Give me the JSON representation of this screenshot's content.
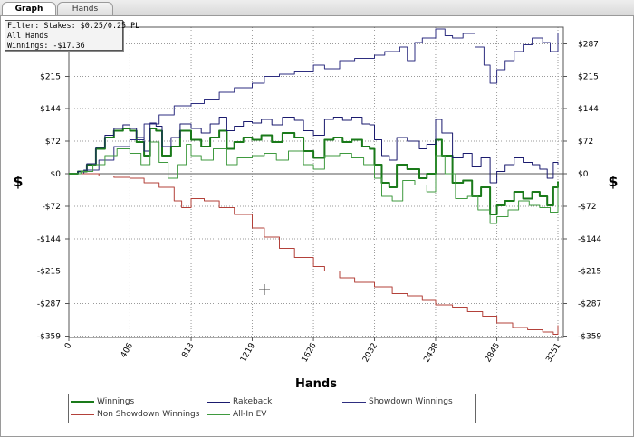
{
  "tabs": [
    {
      "label": "Graph",
      "active": true
    },
    {
      "label": "Hands",
      "active": false
    }
  ],
  "filter": {
    "line1": "Filter: Stakes: $0.25/0.25 PL",
    "line2": "All Hands",
    "line3": "Winnings: -$17.36"
  },
  "chart_data": {
    "type": "line",
    "xlabel": "Hands",
    "ylabel_left": "$",
    "ylabel_right": "$",
    "xlim": [
      0,
      3251
    ],
    "ylim": [
      -359,
      330
    ],
    "x_ticks": [
      0,
      406,
      813,
      1219,
      1626,
      2032,
      2438,
      2845,
      3251
    ],
    "y_ticks": [
      {
        "value": 287,
        "label": "$287"
      },
      {
        "value": 215,
        "label": "$215"
      },
      {
        "value": 144,
        "label": "$144"
      },
      {
        "value": 72,
        "label": "$72"
      },
      {
        "value": 0,
        "label": "$0"
      },
      {
        "value": -72,
        "label": "-$72"
      },
      {
        "value": -144,
        "label": "-$144"
      },
      {
        "value": -215,
        "label": "-$215"
      },
      {
        "value": -287,
        "label": "-$287"
      },
      {
        "value": -359,
        "label": "-$359"
      }
    ],
    "grid": true,
    "legend_position": "bottom",
    "series": [
      {
        "name": "Winnings",
        "color": "#1a7a1a",
        "width": 2,
        "points": [
          [
            0,
            0
          ],
          [
            60,
            5
          ],
          [
            120,
            20
          ],
          [
            180,
            55
          ],
          [
            240,
            80
          ],
          [
            300,
            95
          ],
          [
            360,
            100
          ],
          [
            406,
            95
          ],
          [
            450,
            70
          ],
          [
            500,
            40
          ],
          [
            540,
            100
          ],
          [
            580,
            95
          ],
          [
            620,
            40
          ],
          [
            680,
            60
          ],
          [
            740,
            95
          ],
          [
            813,
            75
          ],
          [
            880,
            60
          ],
          [
            940,
            80
          ],
          [
            1000,
            95
          ],
          [
            1050,
            55
          ],
          [
            1100,
            70
          ],
          [
            1160,
            80
          ],
          [
            1219,
            75
          ],
          [
            1280,
            85
          ],
          [
            1350,
            70
          ],
          [
            1420,
            90
          ],
          [
            1500,
            80
          ],
          [
            1560,
            50
          ],
          [
            1626,
            35
          ],
          [
            1700,
            75
          ],
          [
            1760,
            80
          ],
          [
            1820,
            70
          ],
          [
            1880,
            75
          ],
          [
            1950,
            60
          ],
          [
            2000,
            55
          ],
          [
            2032,
            20
          ],
          [
            2080,
            -20
          ],
          [
            2130,
            -30
          ],
          [
            2180,
            20
          ],
          [
            2250,
            10
          ],
          [
            2330,
            -10
          ],
          [
            2380,
            0
          ],
          [
            2438,
            75
          ],
          [
            2480,
            40
          ],
          [
            2550,
            -20
          ],
          [
            2620,
            -15
          ],
          [
            2680,
            -50
          ],
          [
            2740,
            -30
          ],
          [
            2800,
            -90
          ],
          [
            2845,
            -70
          ],
          [
            2900,
            -60
          ],
          [
            2960,
            -40
          ],
          [
            3020,
            -55
          ],
          [
            3080,
            -40
          ],
          [
            3130,
            -50
          ],
          [
            3180,
            -70
          ],
          [
            3220,
            -30
          ],
          [
            3251,
            -17
          ]
        ]
      },
      {
        "name": "Rakeback",
        "color": "#1a1a6e",
        "width": 1,
        "points": [
          [
            0,
            0
          ],
          [
            60,
            5
          ],
          [
            120,
            22
          ],
          [
            180,
            58
          ],
          [
            240,
            85
          ],
          [
            300,
            100
          ],
          [
            360,
            108
          ],
          [
            406,
            100
          ],
          [
            450,
            80
          ],
          [
            500,
            50
          ],
          [
            540,
            112
          ],
          [
            580,
            105
          ],
          [
            620,
            60
          ],
          [
            680,
            80
          ],
          [
            740,
            110
          ],
          [
            813,
            100
          ],
          [
            880,
            90
          ],
          [
            940,
            110
          ],
          [
            1000,
            125
          ],
          [
            1050,
            95
          ],
          [
            1100,
            105
          ],
          [
            1160,
            115
          ],
          [
            1219,
            112
          ],
          [
            1280,
            120
          ],
          [
            1350,
            108
          ],
          [
            1420,
            125
          ],
          [
            1500,
            118
          ],
          [
            1560,
            95
          ],
          [
            1626,
            85
          ],
          [
            1700,
            120
          ],
          [
            1760,
            125
          ],
          [
            1820,
            118
          ],
          [
            1880,
            125
          ],
          [
            1950,
            110
          ],
          [
            2000,
            108
          ],
          [
            2032,
            75
          ],
          [
            2080,
            40
          ],
          [
            2130,
            30
          ],
          [
            2180,
            80
          ],
          [
            2250,
            72
          ],
          [
            2330,
            55
          ],
          [
            2380,
            65
          ],
          [
            2438,
            120
          ],
          [
            2480,
            90
          ],
          [
            2550,
            35
          ],
          [
            2620,
            45
          ],
          [
            2680,
            15
          ],
          [
            2740,
            35
          ],
          [
            2800,
            -20
          ],
          [
            2845,
            5
          ],
          [
            2900,
            20
          ],
          [
            2960,
            35
          ],
          [
            3020,
            25
          ],
          [
            3080,
            20
          ],
          [
            3130,
            10
          ],
          [
            3180,
            -10
          ],
          [
            3220,
            25
          ],
          [
            3251,
            20
          ]
        ]
      },
      {
        "name": "Showdown Winnings",
        "color": "#2e2e80",
        "width": 1,
        "points": [
          [
            0,
            0
          ],
          [
            100,
            8
          ],
          [
            200,
            30
          ],
          [
            300,
            60
          ],
          [
            406,
            75
          ],
          [
            500,
            110
          ],
          [
            600,
            130
          ],
          [
            700,
            150
          ],
          [
            813,
            155
          ],
          [
            900,
            165
          ],
          [
            1000,
            180
          ],
          [
            1100,
            190
          ],
          [
            1219,
            200
          ],
          [
            1300,
            215
          ],
          [
            1400,
            220
          ],
          [
            1500,
            225
          ],
          [
            1626,
            240
          ],
          [
            1700,
            232
          ],
          [
            1800,
            250
          ],
          [
            1900,
            255
          ],
          [
            2032,
            262
          ],
          [
            2100,
            270
          ],
          [
            2200,
            280
          ],
          [
            2250,
            250
          ],
          [
            2300,
            290
          ],
          [
            2350,
            300
          ],
          [
            2438,
            320
          ],
          [
            2500,
            305
          ],
          [
            2550,
            300
          ],
          [
            2620,
            310
          ],
          [
            2700,
            280
          ],
          [
            2760,
            240
          ],
          [
            2800,
            200
          ],
          [
            2845,
            230
          ],
          [
            2900,
            250
          ],
          [
            2960,
            270
          ],
          [
            3020,
            285
          ],
          [
            3080,
            300
          ],
          [
            3150,
            290
          ],
          [
            3200,
            270
          ],
          [
            3251,
            310
          ]
        ]
      },
      {
        "name": "Non Showdown Winnings",
        "color": "#b3413a",
        "width": 1,
        "points": [
          [
            0,
            0
          ],
          [
            100,
            0
          ],
          [
            200,
            -5
          ],
          [
            300,
            -8
          ],
          [
            406,
            -10
          ],
          [
            500,
            -20
          ],
          [
            600,
            -30
          ],
          [
            700,
            -60
          ],
          [
            750,
            -75
          ],
          [
            813,
            -55
          ],
          [
            900,
            -60
          ],
          [
            1000,
            -75
          ],
          [
            1100,
            -90
          ],
          [
            1219,
            -120
          ],
          [
            1300,
            -140
          ],
          [
            1400,
            -165
          ],
          [
            1500,
            -185
          ],
          [
            1626,
            -205
          ],
          [
            1700,
            -215
          ],
          [
            1800,
            -230
          ],
          [
            1900,
            -240
          ],
          [
            2032,
            -250
          ],
          [
            2150,
            -265
          ],
          [
            2250,
            -270
          ],
          [
            2350,
            -280
          ],
          [
            2438,
            -290
          ],
          [
            2550,
            -295
          ],
          [
            2650,
            -305
          ],
          [
            2750,
            -315
          ],
          [
            2845,
            -330
          ],
          [
            2950,
            -340
          ],
          [
            3050,
            -345
          ],
          [
            3150,
            -350
          ],
          [
            3220,
            -355
          ],
          [
            3251,
            -335
          ]
        ]
      },
      {
        "name": "All-In EV",
        "color": "#3f9a3f",
        "width": 1,
        "points": [
          [
            0,
            0
          ],
          [
            80,
            5
          ],
          [
            160,
            20
          ],
          [
            240,
            40
          ],
          [
            320,
            55
          ],
          [
            406,
            45
          ],
          [
            480,
            20
          ],
          [
            540,
            70
          ],
          [
            600,
            25
          ],
          [
            660,
            -10
          ],
          [
            720,
            20
          ],
          [
            780,
            65
          ],
          [
            813,
            40
          ],
          [
            880,
            30
          ],
          [
            960,
            55
          ],
          [
            1050,
            20
          ],
          [
            1120,
            35
          ],
          [
            1219,
            40
          ],
          [
            1300,
            45
          ],
          [
            1380,
            30
          ],
          [
            1460,
            50
          ],
          [
            1560,
            20
          ],
          [
            1626,
            10
          ],
          [
            1700,
            40
          ],
          [
            1800,
            45
          ],
          [
            1880,
            35
          ],
          [
            1960,
            20
          ],
          [
            2032,
            -10
          ],
          [
            2080,
            -50
          ],
          [
            2150,
            -60
          ],
          [
            2220,
            -15
          ],
          [
            2300,
            -25
          ],
          [
            2380,
            -40
          ],
          [
            2438,
            40
          ],
          [
            2500,
            0
          ],
          [
            2570,
            -55
          ],
          [
            2650,
            -50
          ],
          [
            2720,
            -80
          ],
          [
            2800,
            -110
          ],
          [
            2845,
            -95
          ],
          [
            2920,
            -80
          ],
          [
            2990,
            -60
          ],
          [
            3060,
            -70
          ],
          [
            3130,
            -75
          ],
          [
            3200,
            -85
          ],
          [
            3251,
            -20
          ]
        ]
      }
    ]
  },
  "legend": {
    "items": [
      {
        "label": "Winnings",
        "color": "#1a7a1a"
      },
      {
        "label": "Rakeback",
        "color": "#1a1a6e"
      },
      {
        "label": "Showdown Winnings",
        "color": "#2e2e80"
      },
      {
        "label": "Non Showdown Winnings",
        "color": "#b3413a"
      },
      {
        "label": "All-In EV",
        "color": "#3f9a3f"
      }
    ]
  },
  "cursor_icon": "crosshair-icon"
}
